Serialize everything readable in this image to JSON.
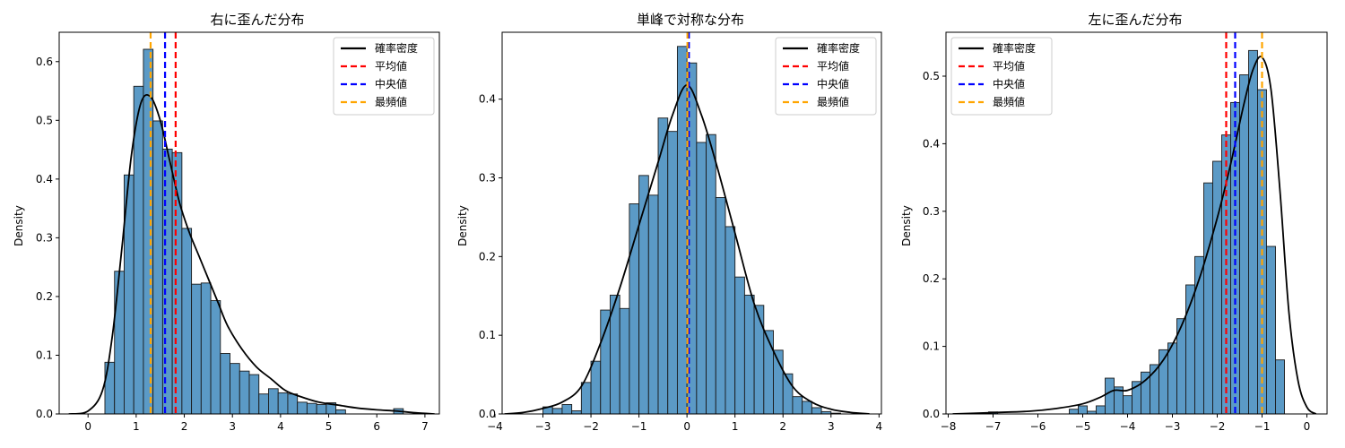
{
  "chart_data": [
    {
      "type": "histogram",
      "title": "右に歪んだ分布",
      "xlabel": "",
      "ylabel": "Density",
      "xlim": [
        -0.6,
        7.3
      ],
      "ylim": [
        0,
        0.65
      ],
      "xticks": [
        0,
        1,
        2,
        3,
        4,
        5,
        6,
        7
      ],
      "yticks": [
        0.0,
        0.1,
        0.2,
        0.3,
        0.4,
        0.5,
        0.6
      ],
      "bin_start": 0.35,
      "bin_width": 0.2,
      "bars": [
        0.088,
        0.243,
        0.407,
        0.558,
        0.621,
        0.499,
        0.451,
        0.445,
        0.316,
        0.221,
        0.223,
        0.193,
        0.103,
        0.086,
        0.073,
        0.067,
        0.034,
        0.043,
        0.036,
        0.034,
        0.02,
        0.018,
        0.016,
        0.019,
        0.007,
        0.0,
        0.0,
        0.0,
        0.0,
        0.0,
        0.009
      ],
      "kde": {
        "x": [
          -0.4,
          0.0,
          0.3,
          0.5,
          0.7,
          0.9,
          1.1,
          1.3,
          1.5,
          1.7,
          1.9,
          2.1,
          2.3,
          2.5,
          2.7,
          2.9,
          3.2,
          3.5,
          3.8,
          4.1,
          4.4,
          4.8,
          5.2,
          5.6,
          6.0,
          6.4,
          6.8,
          7.2
        ],
        "y": [
          0.0,
          0.005,
          0.04,
          0.13,
          0.28,
          0.44,
          0.53,
          0.54,
          0.5,
          0.43,
          0.36,
          0.31,
          0.27,
          0.23,
          0.19,
          0.15,
          0.11,
          0.08,
          0.06,
          0.04,
          0.03,
          0.02,
          0.015,
          0.01,
          0.007,
          0.005,
          0.002,
          0.0
        ]
      },
      "vlines": [
        {
          "label": "平均値",
          "x": 1.82,
          "color": "#ff0000"
        },
        {
          "label": "中央値",
          "x": 1.6,
          "color": "#0000ff"
        },
        {
          "label": "最頻値",
          "x": 1.3,
          "color": "#ffa500"
        }
      ],
      "legend": {
        "placement": "top-right",
        "entries": [
          {
            "label": "確率密度",
            "color": "#000000",
            "style": "solid"
          },
          {
            "label": "平均値",
            "color": "#ff0000",
            "style": "dashed"
          },
          {
            "label": "中央値",
            "color": "#0000ff",
            "style": "dashed"
          },
          {
            "label": "最頻値",
            "color": "#ffa500",
            "style": "dashed"
          }
        ]
      }
    },
    {
      "type": "histogram",
      "title": "単峰で対称な分布",
      "xlabel": "",
      "ylabel": "Density",
      "xlim": [
        -3.85,
        4.05
      ],
      "ylim": [
        0,
        0.485
      ],
      "xticks": [
        -4,
        -3,
        -2,
        -1,
        0,
        1,
        2,
        3,
        4
      ],
      "yticks": [
        0.0,
        0.1,
        0.2,
        0.3,
        0.4
      ],
      "bin_start": -3.0,
      "bin_width": 0.2,
      "bars": [
        0.009,
        0.007,
        0.012,
        0.004,
        0.04,
        0.067,
        0.132,
        0.151,
        0.134,
        0.267,
        0.303,
        0.278,
        0.376,
        0.359,
        0.467,
        0.446,
        0.345,
        0.355,
        0.275,
        0.238,
        0.174,
        0.151,
        0.138,
        0.106,
        0.081,
        0.051,
        0.022,
        0.016,
        0.008,
        0.003,
        0.001
      ],
      "kde": {
        "x": [
          -3.8,
          -3.4,
          -3.0,
          -2.6,
          -2.2,
          -1.8,
          -1.4,
          -1.0,
          -0.6,
          -0.3,
          0.0,
          0.3,
          0.6,
          1.0,
          1.4,
          1.8,
          2.2,
          2.6,
          3.0,
          3.4,
          3.8
        ],
        "y": [
          0.0,
          0.002,
          0.007,
          0.015,
          0.035,
          0.09,
          0.16,
          0.24,
          0.32,
          0.38,
          0.418,
          0.38,
          0.32,
          0.23,
          0.14,
          0.08,
          0.035,
          0.015,
          0.006,
          0.002,
          0.0
        ]
      },
      "vlines": [
        {
          "label": "平均値",
          "x": 0.03,
          "color": "#ff0000"
        },
        {
          "label": "中央値",
          "x": 0.04,
          "color": "#0000ff"
        },
        {
          "label": "最頻値",
          "x": 0.01,
          "color": "#ffa500"
        }
      ],
      "legend": {
        "placement": "top-right",
        "entries": [
          {
            "label": "確率密度",
            "color": "#000000",
            "style": "solid"
          },
          {
            "label": "平均値",
            "color": "#ff0000",
            "style": "dashed"
          },
          {
            "label": "中央値",
            "color": "#0000ff",
            "style": "dashed"
          },
          {
            "label": "最頻値",
            "color": "#ffa500",
            "style": "dashed"
          }
        ]
      }
    },
    {
      "type": "histogram",
      "title": "左に歪んだ分布",
      "xlabel": "",
      "ylabel": "Density",
      "xlim": [
        -8.05,
        0.45
      ],
      "ylim": [
        0,
        0.565
      ],
      "xticks": [
        -8,
        -7,
        -6,
        -5,
        -4,
        -3,
        -2,
        -1,
        0
      ],
      "yticks": [
        0.0,
        0.1,
        0.2,
        0.3,
        0.4,
        0.5
      ],
      "bin_start": -5.3,
      "bin_width": 0.2,
      "bars": [
        0.007,
        0.012,
        0.004,
        0.012,
        0.053,
        0.04,
        0.027,
        0.048,
        0.062,
        0.073,
        0.095,
        0.105,
        0.141,
        0.191,
        0.233,
        0.342,
        0.374,
        0.413,
        0.461,
        0.502,
        0.538,
        0.48,
        0.248,
        0.08
      ],
      "extra_bars": [
        {
          "x0": -7.1,
          "x1": -6.9,
          "value": 0.003
        }
      ],
      "kde": {
        "x": [
          -7.9,
          -7.0,
          -6.2,
          -5.6,
          -5.0,
          -4.6,
          -4.3,
          -4.0,
          -3.6,
          -3.2,
          -2.8,
          -2.4,
          -2.0,
          -1.7,
          -1.4,
          -1.2,
          -1.0,
          -0.8,
          -0.6,
          -0.4,
          -0.2,
          0.0,
          0.2
        ],
        "y": [
          0.0,
          0.002,
          0.004,
          0.008,
          0.015,
          0.025,
          0.035,
          0.035,
          0.05,
          0.08,
          0.13,
          0.2,
          0.29,
          0.37,
          0.46,
          0.51,
          0.528,
          0.48,
          0.33,
          0.15,
          0.05,
          0.01,
          0.0
        ]
      },
      "vlines": [
        {
          "label": "平均値",
          "x": -1.8,
          "color": "#ff0000"
        },
        {
          "label": "中央値",
          "x": -1.6,
          "color": "#0000ff"
        },
        {
          "label": "最頻値",
          "x": -1.0,
          "color": "#ffa500"
        }
      ],
      "legend": {
        "placement": "top-left",
        "entries": [
          {
            "label": "確率密度",
            "color": "#000000",
            "style": "solid"
          },
          {
            "label": "平均値",
            "color": "#ff0000",
            "style": "dashed"
          },
          {
            "label": "中央値",
            "color": "#0000ff",
            "style": "dashed"
          },
          {
            "label": "最頻値",
            "color": "#ffa500",
            "style": "dashed"
          }
        ]
      }
    }
  ],
  "colors": {
    "bar_fill": "#5b9ac6",
    "bar_edge": "#1a1a1a",
    "kde": "#000000"
  }
}
